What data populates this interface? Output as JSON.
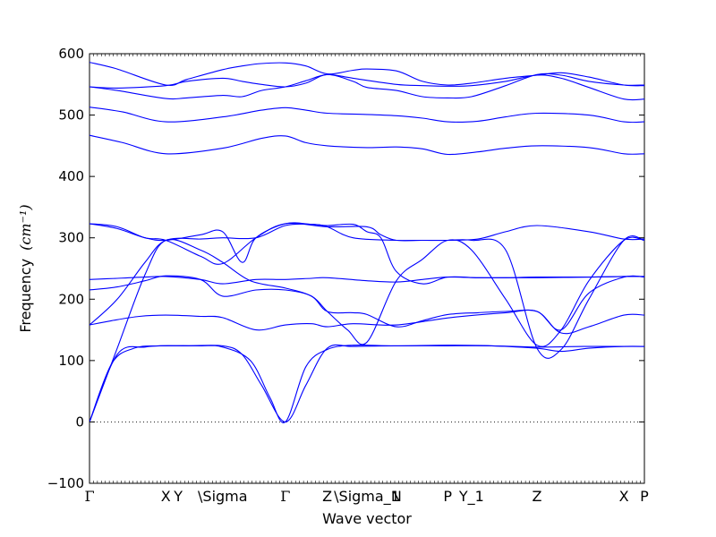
{
  "chart_data": {
    "type": "line",
    "xlabel": "Wave vector",
    "ylabel": "Frequency",
    "ylabel_unit": "(cm⁻¹)",
    "ylim": [
      -100,
      600
    ],
    "yticks": [
      -100,
      0,
      100,
      200,
      300,
      400,
      500,
      600
    ],
    "grid": false,
    "line_color": "#0000ff",
    "zero_line_style": "dotted",
    "high_symmetry_points": [
      {
        "label": "Γ",
        "x": 0.0,
        "greek": true
      },
      {
        "label": "X",
        "x": 0.275
      },
      {
        "label": "Y",
        "x": 0.32
      },
      {
        "label": "\\Sigma",
        "x": 0.48
      },
      {
        "label": "Γ",
        "x": 0.706,
        "greek": true
      },
      {
        "label": "Z",
        "x": 0.857
      },
      {
        "label": "\\Sigma_1",
        "x": 1.0
      },
      {
        "label": "N",
        "x": 1.106
      },
      {
        "label": "P",
        "x": 1.291
      },
      {
        "label": "Y_1",
        "x": 1.377
      },
      {
        "label": "Z",
        "x": 1.613
      },
      {
        "label": "X",
        "x": 1.926
      },
      {
        "label": "P",
        "x": 2.0
      }
    ],
    "x_range": [
      0,
      2.0
    ],
    "series": [
      {
        "x": [
          0,
          0.08,
          0.16,
          0.25,
          0.35,
          0.48,
          0.55,
          0.62,
          0.706,
          0.78,
          0.857,
          0.95,
          1.1,
          1.29,
          1.45,
          1.613,
          1.78,
          1.926,
          2.0
        ],
        "values": [
          0,
          95,
          120,
          124,
          124,
          124,
          110,
          60,
          0,
          60,
          120,
          123,
          124,
          124,
          124,
          122,
          123,
          123,
          123
        ]
      },
      {
        "x": [
          0,
          0.1,
          0.2,
          0.275,
          0.4,
          0.48,
          0.58,
          0.65,
          0.706,
          0.78,
          0.857,
          0.95,
          1.1,
          1.29,
          1.45,
          1.613,
          1.7,
          1.8,
          1.926,
          2.0
        ],
        "values": [
          0,
          110,
          122,
          124,
          124,
          122,
          100,
          40,
          0,
          90,
          118,
          125,
          124,
          125,
          124,
          120,
          115,
          120,
          123,
          123
        ]
      },
      {
        "x": [
          0,
          0.08,
          0.18,
          0.275,
          0.4,
          0.48,
          0.6,
          0.706,
          0.8,
          0.857,
          0.95,
          1.106,
          1.3,
          1.5,
          1.613,
          1.7,
          1.8,
          1.926,
          2.0
        ],
        "values": [
          158,
          165,
          172,
          174,
          172,
          170,
          150,
          158,
          160,
          155,
          160,
          158,
          170,
          178,
          180,
          145,
          155,
          174,
          174
        ]
      },
      {
        "x": [
          0,
          0.1,
          0.2,
          0.275,
          0.4,
          0.48,
          0.58,
          0.706,
          0.8,
          0.857,
          0.93,
          1.0,
          1.106,
          1.2,
          1.291,
          1.377,
          1.5,
          1.613,
          1.7,
          1.8,
          1.926,
          2.0
        ],
        "values": [
          0,
          120,
          240,
          296,
          280,
          260,
          230,
          218,
          205,
          180,
          150,
          130,
          230,
          265,
          296,
          280,
          200,
          125,
          150,
          230,
          296,
          296
        ]
      },
      {
        "x": [
          0,
          0.1,
          0.2,
          0.275,
          0.4,
          0.48,
          0.6,
          0.706,
          0.8,
          0.857,
          0.95,
          1.106,
          1.2,
          1.291,
          1.377,
          1.5,
          1.613,
          1.7,
          1.8,
          1.926,
          2.0
        ],
        "values": [
          158,
          200,
          260,
          296,
          298,
          300,
          300,
          320,
          322,
          318,
          300,
          296,
          296,
          296,
          296,
          280,
          120,
          118,
          200,
          296,
          296
        ]
      },
      {
        "x": [
          0,
          0.1,
          0.2,
          0.275,
          0.4,
          0.48,
          0.6,
          0.706,
          0.8,
          0.857,
          0.95,
          1.0,
          1.106,
          1.2,
          1.291,
          1.4,
          1.5,
          1.613,
          1.7,
          1.8,
          1.926,
          2.0
        ],
        "values": [
          215,
          220,
          230,
          238,
          232,
          205,
          215,
          215,
          205,
          180,
          178,
          175,
          155,
          165,
          175,
          178,
          180,
          180,
          150,
          210,
          236,
          236
        ]
      },
      {
        "x": [
          0,
          0.1,
          0.2,
          0.275,
          0.4,
          0.48,
          0.6,
          0.706,
          0.8,
          0.857,
          1.0,
          1.106,
          1.2,
          1.291,
          1.4,
          1.5,
          1.613,
          1.8,
          1.926,
          2.0
        ],
        "values": [
          232,
          234,
          236,
          237,
          232,
          225,
          232,
          232,
          234,
          235,
          230,
          228,
          232,
          236,
          235,
          235,
          235,
          236,
          237,
          237
        ]
      },
      {
        "x": [
          0,
          0.1,
          0.2,
          0.275,
          0.4,
          0.48,
          0.55,
          0.6,
          0.706,
          0.8,
          0.857,
          0.95,
          1.0,
          1.05,
          1.106,
          1.2,
          1.291,
          1.4,
          1.5,
          1.613,
          1.8,
          1.926,
          2.0
        ],
        "values": [
          323,
          315,
          300,
          296,
          305,
          310,
          260,
          300,
          323,
          322,
          320,
          322,
          310,
          300,
          245,
          225,
          236,
          235,
          235,
          236,
          236,
          237,
          237
        ]
      },
      {
        "x": [
          0,
          0.1,
          0.2,
          0.275,
          0.4,
          0.48,
          0.6,
          0.706,
          0.857,
          1.0,
          1.05,
          1.106,
          1.2,
          1.291,
          1.4,
          1.5,
          1.613,
          1.8,
          1.926,
          2.0
        ],
        "values": [
          323,
          318,
          300,
          296,
          270,
          258,
          300,
          323,
          318,
          318,
          305,
          296,
          296,
          296,
          298,
          310,
          320,
          310,
          298,
          298
        ]
      },
      {
        "x": [
          0,
          0.12,
          0.275,
          0.48,
          0.62,
          0.706,
          0.78,
          0.857,
          1.0,
          1.106,
          1.2,
          1.291,
          1.4,
          1.5,
          1.613,
          1.8,
          1.926,
          2.0
        ],
        "values": [
          467,
          455,
          437,
          446,
          462,
          466,
          455,
          450,
          447,
          448,
          445,
          436,
          440,
          446,
          450,
          447,
          437,
          437
        ]
      },
      {
        "x": [
          0,
          0.12,
          0.275,
          0.48,
          0.62,
          0.706,
          0.78,
          0.857,
          1.0,
          1.106,
          1.2,
          1.291,
          1.4,
          1.5,
          1.613,
          1.8,
          1.926,
          2.0
        ],
        "values": [
          513,
          505,
          489,
          497,
          508,
          512,
          508,
          503,
          501,
          499,
          495,
          489,
          490,
          497,
          503,
          500,
          489,
          489
        ]
      },
      {
        "x": [
          0,
          0.1,
          0.275,
          0.35,
          0.48,
          0.55,
          0.62,
          0.706,
          0.78,
          0.857,
          0.95,
          1.106,
          1.2,
          1.291,
          1.377,
          1.5,
          1.613,
          1.7,
          1.8,
          1.926,
          2.0
        ],
        "values": [
          546,
          540,
          527,
          528,
          532,
          530,
          540,
          546,
          556,
          566,
          560,
          550,
          548,
          547,
          548,
          555,
          565,
          560,
          545,
          526,
          526
        ]
      },
      {
        "x": [
          0,
          0.1,
          0.275,
          0.35,
          0.48,
          0.55,
          0.62,
          0.706,
          0.78,
          0.857,
          0.95,
          1.0,
          1.106,
          1.2,
          1.291,
          1.377,
          1.5,
          1.613,
          1.7,
          1.8,
          1.926,
          2.0
        ],
        "values": [
          546,
          544,
          548,
          555,
          560,
          555,
          550,
          546,
          552,
          566,
          555,
          545,
          540,
          530,
          528,
          530,
          548,
          566,
          565,
          555,
          549,
          549
        ]
      },
      {
        "x": [
          0,
          0.1,
          0.275,
          0.35,
          0.48,
          0.55,
          0.62,
          0.706,
          0.78,
          0.857,
          0.95,
          1.0,
          1.106,
          1.2,
          1.291,
          1.377,
          1.5,
          1.613,
          1.7,
          1.8,
          1.926,
          2.0
        ],
        "values": [
          586,
          575,
          549,
          558,
          574,
          580,
          584,
          585,
          580,
          567,
          573,
          575,
          572,
          555,
          549,
          552,
          560,
          565,
          569,
          562,
          549,
          548
        ]
      }
    ]
  }
}
